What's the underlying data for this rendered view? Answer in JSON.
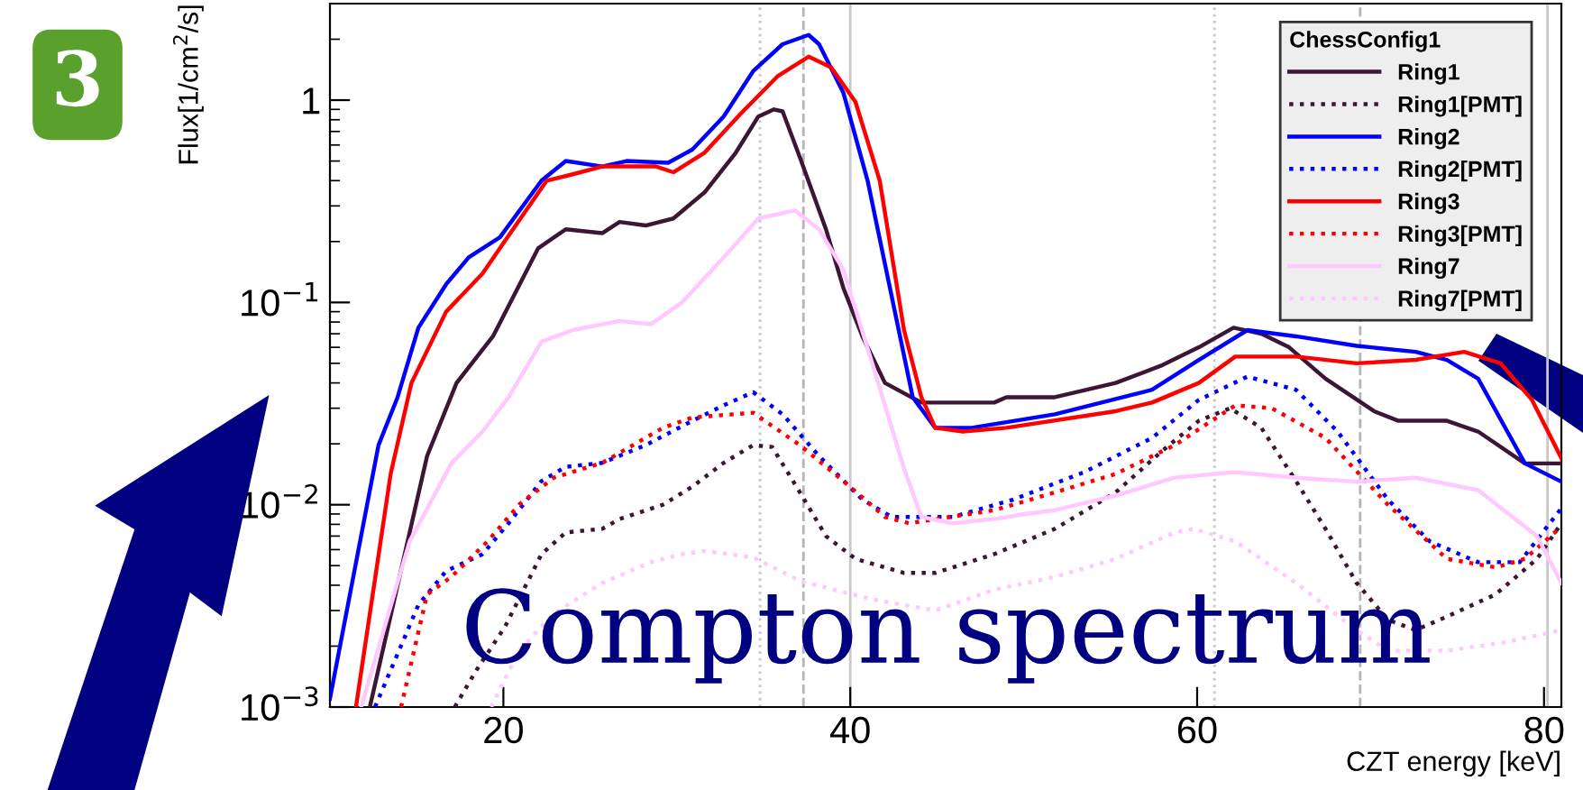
{
  "chart_data": {
    "type": "line",
    "xlabel": "CZT energy [keV]",
    "ylabel": "Flux[1/cm$^{2}$/s]",
    "legend_title": "ChessConfig1",
    "annotations": [
      "3",
      "Compton spectrum"
    ],
    "log": "y",
    "grid": false,
    "legend": "top right",
    "marker": "none",
    "xlim": [
      10,
      81
    ],
    "xticks": [
      20,
      40,
      60,
      80
    ],
    "ylim": [
      0.001,
      3
    ],
    "yticks": [
      {
        "value": 0.001,
        "label": "10$^{−3}$"
      },
      {
        "value": 0.01,
        "label": "10$^{−2}$"
      },
      {
        "value": 0.1,
        "label": "10$^{−1}$"
      },
      1
    ],
    "ref_lines": [
      {
        "axis": "x",
        "value": 34.8,
        "color": "#c8c8c8",
        "line_style": "dotted"
      },
      {
        "axis": "x",
        "value": 37.3,
        "color": "#b4b4b4",
        "line_style": "dashed"
      },
      {
        "axis": "x",
        "value": 40,
        "color": "#c8c8c8",
        "line_style": "solid"
      },
      {
        "axis": "x",
        "value": 61.0,
        "color": "#c8c8c8",
        "line_style": "dotted"
      },
      {
        "axis": "x",
        "value": 69.4,
        "color": "#b4b4b4",
        "line_style": "dashed"
      },
      {
        "axis": "x",
        "value": 80.2,
        "color": "#c8c8c8",
        "line_style": "solid"
      }
    ],
    "series": [
      {
        "name": "Ring1",
        "color": "#3d1535",
        "line_style": "solid",
        "x": [
          12.3,
          15.6,
          17.3,
          19.4,
          22.0,
          23.6,
          25.7,
          26.7,
          28.2,
          29.8,
          31.6,
          33.4,
          34.7,
          35.6,
          36.1,
          37.1,
          38.6,
          39.6,
          40.7,
          42.0,
          44.1,
          48.3,
          49.0,
          51.8,
          55.3,
          58.0,
          60.1,
          62.1,
          63.7,
          65.3,
          67.4,
          70.2,
          71.6,
          74.4,
          76.2,
          78.9,
          81
        ],
        "values": [
          0.001,
          0.0174,
          0.04,
          0.068,
          0.185,
          0.23,
          0.22,
          0.25,
          0.24,
          0.26,
          0.35,
          0.55,
          0.83,
          0.9,
          0.88,
          0.52,
          0.23,
          0.118,
          0.068,
          0.04,
          0.032,
          0.032,
          0.034,
          0.034,
          0.04,
          0.049,
          0.06,
          0.075,
          0.07,
          0.06,
          0.042,
          0.029,
          0.026,
          0.026,
          0.023,
          0.016,
          0.016
        ]
      },
      {
        "name": "Ring1[PMT]",
        "color": "#3d1535",
        "line_style": "dotted",
        "x": [
          17.2,
          18.4,
          20.1,
          22.2,
          23.6,
          25.7,
          26.7,
          29.2,
          30.9,
          32.7,
          34.4,
          35.5,
          37.1,
          38.6,
          40.3,
          43.1,
          44.9,
          48.3,
          51.8,
          55.3,
          58.0,
          60.1,
          61.9,
          63.7,
          65.7,
          67.4,
          69.2,
          71.0,
          72.6,
          74.4,
          77.2,
          79.6,
          81
        ],
        "values": [
          0.001,
          0.0015,
          0.0025,
          0.0057,
          0.0073,
          0.0076,
          0.0085,
          0.01,
          0.0123,
          0.0161,
          0.0197,
          0.0193,
          0.0115,
          0.007,
          0.0054,
          0.0046,
          0.0046,
          0.0057,
          0.0076,
          0.0115,
          0.0185,
          0.026,
          0.03,
          0.024,
          0.0131,
          0.0076,
          0.0041,
          0.0027,
          0.0024,
          0.0028,
          0.0036,
          0.0054,
          0.0081
        ]
      },
      {
        "name": "Ring2",
        "color": "#0000ff",
        "line_style": "solid",
        "x": [
          10.0,
          12.8,
          13.9,
          15.1,
          16.7,
          18.0,
          19.8,
          22.2,
          23.6,
          25.7,
          27.1,
          29.5,
          30.9,
          32.7,
          34.4,
          36.1,
          37.6,
          38.2,
          39.6,
          41.0,
          43.6,
          44.9,
          47.0,
          51.8,
          57.4,
          60.1,
          62.9,
          65.7,
          69.2,
          72.6,
          74.4,
          76.2,
          78.9,
          81
        ],
        "values": [
          0.0011,
          0.0197,
          0.034,
          0.075,
          0.123,
          0.167,
          0.21,
          0.4,
          0.5,
          0.47,
          0.5,
          0.49,
          0.57,
          0.83,
          1.39,
          1.89,
          2.1,
          1.89,
          1.09,
          0.4,
          0.034,
          0.024,
          0.024,
          0.028,
          0.037,
          0.052,
          0.073,
          0.068,
          0.061,
          0.057,
          0.052,
          0.042,
          0.016,
          0.013
        ]
      },
      {
        "name": "Ring2[PMT]",
        "color": "#0000ff",
        "line_style": "dotted",
        "x": [
          12.6,
          15.1,
          16.7,
          18.8,
          20.3,
          22.2,
          23.6,
          25.7,
          28.2,
          30.9,
          32.7,
          34.4,
          36.1,
          38.2,
          40.7,
          42.4,
          45.9,
          49.4,
          53.5,
          57.4,
          60.1,
          62.9,
          65.7,
          68.1,
          71.0,
          73.4,
          76.2,
          78.6,
          81
        ],
        "values": [
          0.001,
          0.0032,
          0.0047,
          0.0057,
          0.0081,
          0.0131,
          0.0154,
          0.0161,
          0.0197,
          0.026,
          0.031,
          0.036,
          0.028,
          0.0174,
          0.0106,
          0.0087,
          0.0087,
          0.0106,
          0.0145,
          0.0214,
          0.033,
          0.043,
          0.037,
          0.023,
          0.0106,
          0.0066,
          0.0052,
          0.0052,
          0.0096
        ]
      },
      {
        "name": "Ring3",
        "color": "#ff0000",
        "line_style": "solid",
        "x": [
          11.5,
          13.5,
          14.7,
          16.7,
          18.8,
          20.4,
          22.5,
          24.0,
          25.7,
          28.8,
          29.8,
          31.6,
          33.7,
          35.8,
          37.6,
          38.9,
          40.3,
          41.7,
          43.1,
          44.1,
          44.9,
          46.5,
          49.0,
          55.3,
          57.4,
          60.1,
          62.2,
          65.7,
          69.2,
          72.6,
          75.4,
          77.5,
          79.3,
          81
        ],
        "values": [
          0.001,
          0.0142,
          0.04,
          0.09,
          0.139,
          0.22,
          0.4,
          0.43,
          0.47,
          0.47,
          0.44,
          0.55,
          0.86,
          1.31,
          1.64,
          1.45,
          0.98,
          0.4,
          0.073,
          0.034,
          0.024,
          0.023,
          0.024,
          0.029,
          0.032,
          0.04,
          0.054,
          0.054,
          0.05,
          0.052,
          0.057,
          0.05,
          0.033,
          0.017
        ]
      },
      {
        "name": "Ring3[PMT]",
        "color": "#ff0000",
        "line_style": "dotted",
        "x": [
          14.1,
          15.6,
          17.0,
          19.1,
          20.9,
          22.9,
          25.7,
          29.2,
          30.9,
          34.4,
          37.1,
          39.6,
          42.0,
          43.4,
          48.3,
          51.8,
          55.3,
          58.7,
          62.2,
          64.3,
          67.4,
          71.0,
          74.4,
          77.2,
          78.9,
          81
        ],
        "values": [
          0.001,
          0.0036,
          0.0044,
          0.0066,
          0.01,
          0.0136,
          0.0161,
          0.024,
          0.027,
          0.0285,
          0.0197,
          0.0131,
          0.0087,
          0.0081,
          0.0094,
          0.0115,
          0.0142,
          0.0197,
          0.031,
          0.03,
          0.0214,
          0.01,
          0.0054,
          0.0049,
          0.0054,
          0.0078
        ]
      },
      {
        "name": "Ring7",
        "color": "#ffc8ff",
        "line_style": "solid",
        "x": [
          11.8,
          14.6,
          17.0,
          18.8,
          20.3,
          22.2,
          24.0,
          26.7,
          28.5,
          30.3,
          32.7,
          34.7,
          36.8,
          38.2,
          39.6,
          41.3,
          43.1,
          44.1,
          45.9,
          48.3,
          50.1,
          51.8,
          55.3,
          58.7,
          62.2,
          65.7,
          69.2,
          72.6,
          76.2,
          79.6,
          81
        ],
        "values": [
          0.001,
          0.0066,
          0.016,
          0.023,
          0.034,
          0.064,
          0.073,
          0.081,
          0.078,
          0.1,
          0.167,
          0.26,
          0.285,
          0.23,
          0.145,
          0.049,
          0.0151,
          0.0087,
          0.0081,
          0.0085,
          0.009,
          0.0094,
          0.0111,
          0.0136,
          0.0145,
          0.0136,
          0.013,
          0.0136,
          0.0118,
          0.007,
          0.0041
        ]
      },
      {
        "name": "Ring7[PMT]",
        "color": "#ffc8ff",
        "line_style": "dotted",
        "x": [
          19.3,
          20.9,
          22.9,
          25.7,
          28.5,
          30.3,
          31.6,
          34.4,
          37.1,
          41.3,
          44.9,
          48.3,
          51.8,
          55.3,
          58.7,
          59.8,
          62.2,
          65.7,
          69.2,
          71.0,
          74.4,
          77.9,
          81
        ],
        "values": [
          0.001,
          0.0019,
          0.0029,
          0.0041,
          0.0052,
          0.0057,
          0.0059,
          0.0055,
          0.0042,
          0.0034,
          0.003,
          0.0038,
          0.0044,
          0.0054,
          0.0073,
          0.0076,
          0.0066,
          0.0041,
          0.0024,
          0.0019,
          0.0019,
          0.0021,
          0.0024
        ]
      }
    ]
  }
}
